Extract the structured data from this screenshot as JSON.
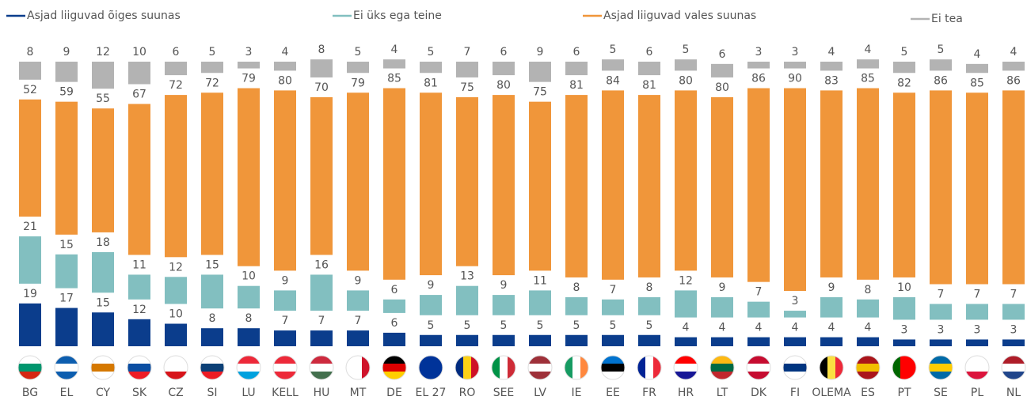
{
  "chart_data": {
    "type": "stacked_bar",
    "categories": [
      "BG",
      "EL",
      "CY",
      "SK",
      "CZ",
      "SI",
      "LU",
      "KELL",
      "HU",
      "MT",
      "DE",
      "EL 27",
      "RO",
      "SEE",
      "LV",
      "IE",
      "EE",
      "FR",
      "HR",
      "LT",
      "DK",
      "FI",
      "OLEMA",
      "ES",
      "PT",
      "SE",
      "PL",
      "NL"
    ],
    "series": [
      {
        "name": "Asjad liiguvad õiges suunas",
        "color": "#0b3d8c",
        "values": [
          19,
          17,
          15,
          12,
          10,
          8,
          8,
          7,
          7,
          7,
          6,
          5,
          5,
          5,
          5,
          5,
          5,
          5,
          4,
          4,
          4,
          4,
          4,
          4,
          3,
          3,
          3,
          3
        ]
      },
      {
        "name": "Ei üks ega teine",
        "color": "#82bfc0",
        "values": [
          21,
          15,
          18,
          11,
          12,
          15,
          10,
          9,
          16,
          9,
          6,
          9,
          13,
          9,
          11,
          8,
          7,
          8,
          12,
          9,
          7,
          3,
          9,
          8,
          10,
          7,
          7,
          7
        ]
      },
      {
        "name": "Asjad liiguvad vales suunas",
        "color": "#f0963a",
        "values": [
          52,
          59,
          55,
          67,
          72,
          72,
          79,
          80,
          70,
          79,
          85,
          81,
          75,
          80,
          75,
          81,
          84,
          81,
          80,
          80,
          86,
          90,
          83,
          85,
          82,
          86,
          85,
          86
        ]
      },
      {
        "name": "Ei tea",
        "color": "#b3b3b3",
        "values": [
          8,
          9,
          12,
          10,
          6,
          5,
          3,
          4,
          8,
          5,
          4,
          5,
          7,
          6,
          9,
          6,
          5,
          6,
          5,
          6,
          3,
          3,
          4,
          4,
          5,
          5,
          4,
          4
        ]
      }
    ]
  }
}
